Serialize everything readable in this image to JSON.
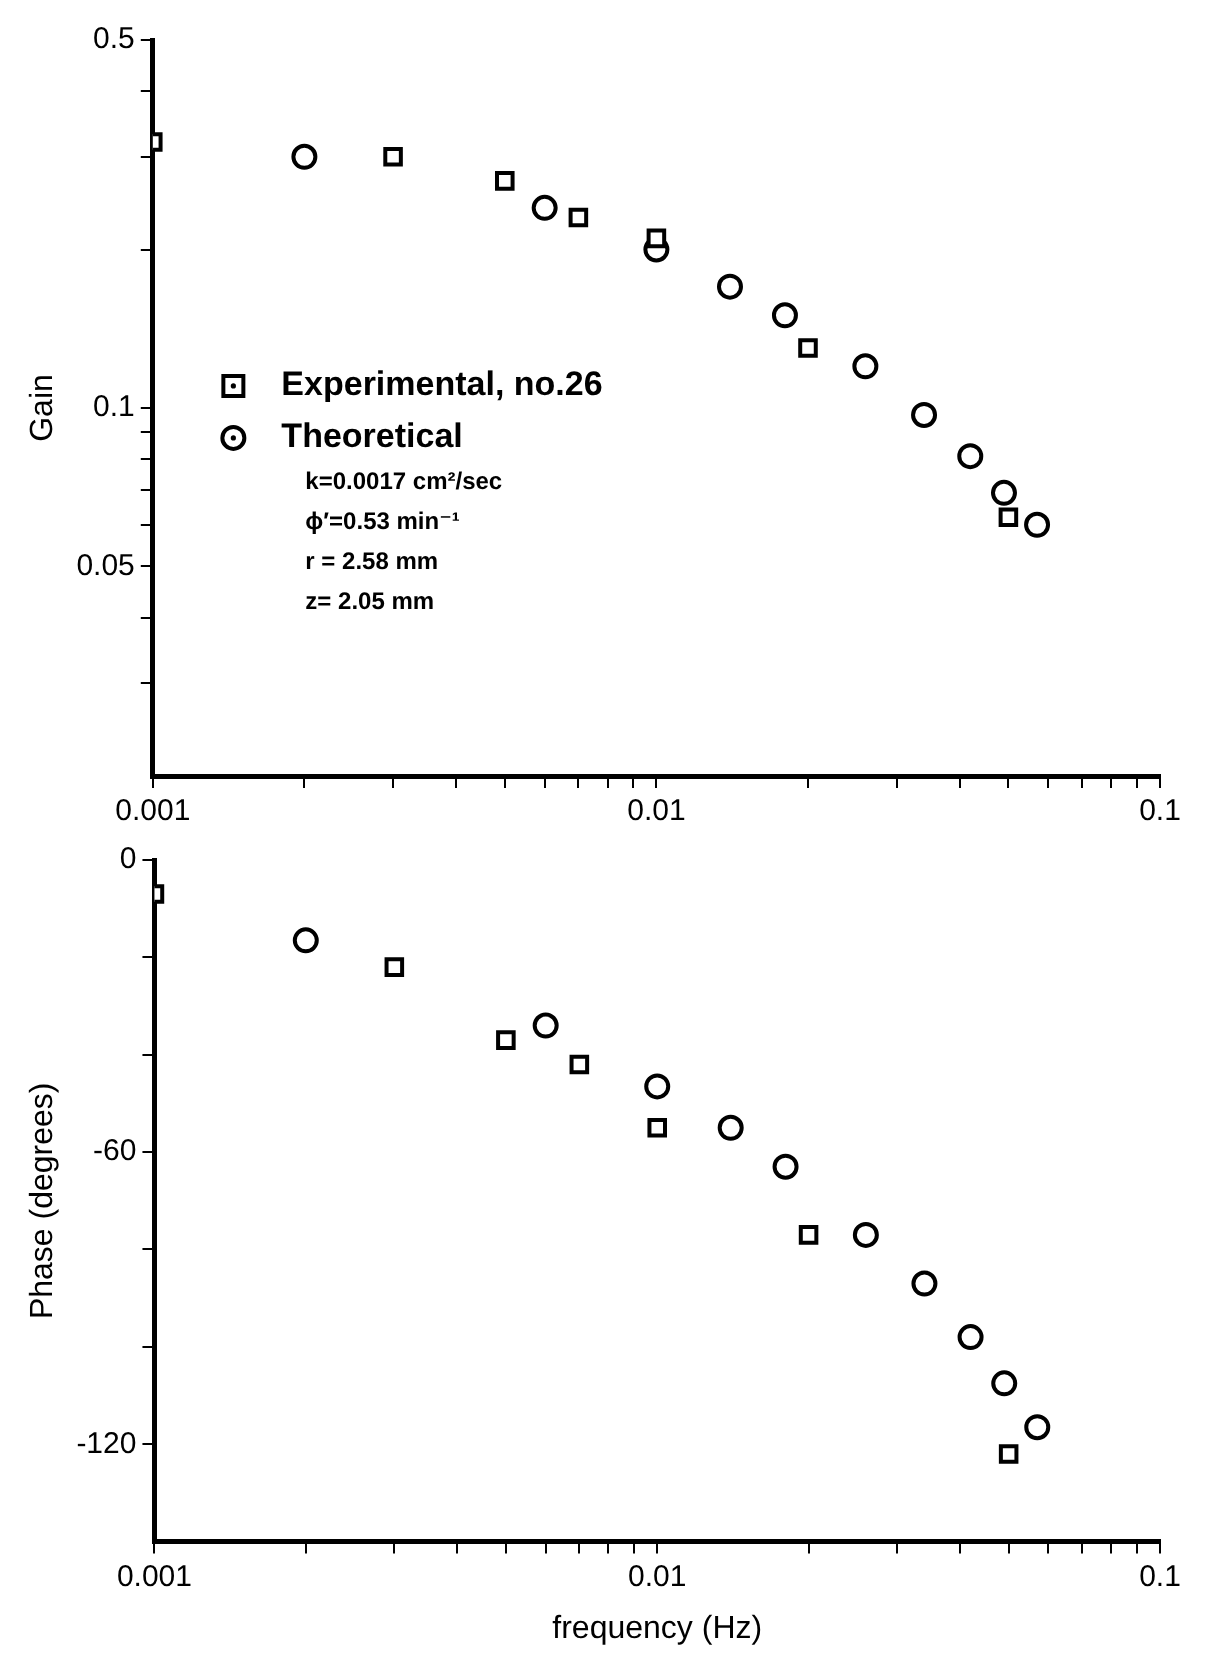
{
  "chart_data": [
    {
      "type": "scatter",
      "ylabel": "Gain",
      "log": "xy",
      "grid": false,
      "legend": "left",
      "xlim": [
        0.001,
        0.1
      ],
      "xticks": [
        0.001,
        {
          "value": 0.002,
          "label": null
        },
        {
          "value": 0.003,
          "label": null
        },
        {
          "value": 0.004,
          "label": null
        },
        {
          "value": 0.005,
          "label": null
        },
        {
          "value": 0.006,
          "label": null
        },
        {
          "value": 0.007,
          "label": null
        },
        {
          "value": 0.008,
          "label": null
        },
        {
          "value": 0.009,
          "label": null
        },
        0.01,
        {
          "value": 0.02,
          "label": null
        },
        {
          "value": 0.03,
          "label": null
        },
        {
          "value": 0.04,
          "label": null
        },
        {
          "value": 0.05,
          "label": null
        },
        {
          "value": 0.06,
          "label": null
        },
        {
          "value": 0.07,
          "label": null
        },
        {
          "value": 0.08,
          "label": null
        },
        {
          "value": 0.09,
          "label": null
        },
        0.1
      ],
      "ylim": [
        0.02,
        0.5
      ],
      "yticks": [
        {
          "value": 0.03,
          "label": null
        },
        {
          "value": 0.04,
          "label": null
        },
        0.05,
        {
          "value": 0.06,
          "label": null
        },
        {
          "value": 0.07,
          "label": null
        },
        {
          "value": 0.08,
          "label": null
        },
        {
          "value": 0.09,
          "label": null
        },
        0.1,
        {
          "value": 0.2,
          "label": null
        },
        {
          "value": 0.3,
          "label": null
        },
        {
          "value": 0.4,
          "label": null
        },
        0.5
      ],
      "annotations": [
        "k=0.0017 cm²/sec",
        "ϕ′=0.53 min⁻¹",
        "r = 2.58 mm",
        "z= 2.05 mm"
      ],
      "series": [
        {
          "name": "Experimental, no.26",
          "color": "#000000",
          "marker": "square",
          "x": [
            0.001,
            0.003,
            0.005,
            0.007,
            0.01,
            0.02,
            0.05
          ],
          "values": [
            0.32,
            0.3,
            0.27,
            0.23,
            0.21,
            0.13,
            0.062
          ]
        },
        {
          "name": "Theoretical",
          "color": "#000000",
          "marker": "circle",
          "x": [
            0.002,
            0.006,
            0.01,
            0.014,
            0.018,
            0.026,
            0.034,
            0.042,
            0.049,
            0.057
          ],
          "values": [
            0.3,
            0.24,
            0.2,
            0.17,
            0.15,
            0.12,
            0.097,
            0.081,
            0.069,
            0.06
          ]
        }
      ]
    },
    {
      "type": "scatter",
      "xlabel": "frequency (Hz)",
      "ylabel": "Phase (degrees)",
      "log": "x",
      "grid": false,
      "xlim": [
        0.001,
        0.1
      ],
      "xticks": [
        0.001,
        {
          "value": 0.002,
          "label": null
        },
        {
          "value": 0.003,
          "label": null
        },
        {
          "value": 0.004,
          "label": null
        },
        {
          "value": 0.005,
          "label": null
        },
        {
          "value": 0.006,
          "label": null
        },
        {
          "value": 0.007,
          "label": null
        },
        {
          "value": 0.008,
          "label": null
        },
        {
          "value": 0.009,
          "label": null
        },
        0.01,
        {
          "value": 0.02,
          "label": null
        },
        {
          "value": 0.03,
          "label": null
        },
        {
          "value": 0.04,
          "label": null
        },
        {
          "value": 0.05,
          "label": null
        },
        {
          "value": 0.06,
          "label": null
        },
        {
          "value": 0.07,
          "label": null
        },
        {
          "value": 0.08,
          "label": null
        },
        {
          "value": 0.09,
          "label": null
        },
        0.1
      ],
      "ylim": [
        -140,
        0
      ],
      "yticks": [
        -120,
        {
          "value": -100,
          "label": null
        },
        {
          "value": -80,
          "label": null
        },
        -60,
        {
          "value": -40,
          "label": null
        },
        {
          "value": -20,
          "label": null
        },
        0
      ],
      "series": [
        {
          "color": "#000000",
          "marker": "square",
          "x": [
            0.001,
            0.003,
            0.005,
            0.007,
            0.01,
            0.02,
            0.05
          ],
          "values": [
            -7,
            -22,
            -37,
            -42,
            -55,
            -77,
            -122
          ]
        },
        {
          "color": "#000000",
          "marker": "circle",
          "x": [
            0.002,
            0.006,
            0.01,
            0.014,
            0.018,
            0.026,
            0.034,
            0.042,
            0.049,
            0.057
          ],
          "values": [
            -16.5,
            -34,
            -46.5,
            -55,
            -63,
            -77,
            -87,
            -98,
            -107.5,
            -116.5
          ]
        }
      ]
    }
  ]
}
